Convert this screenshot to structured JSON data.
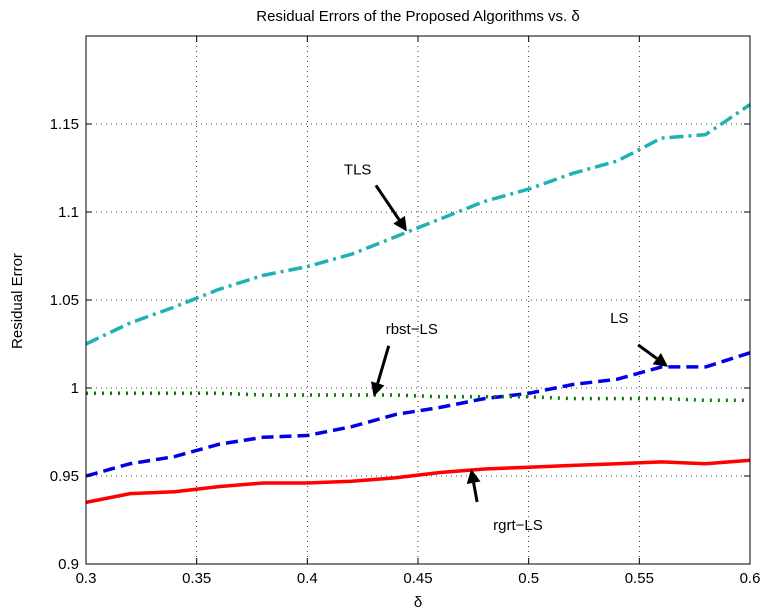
{
  "chart_data": {
    "type": "line",
    "title": "Residual Errors of the Proposed Algorithms vs. δ",
    "xlabel": "δ",
    "ylabel": "Residual Error",
    "xlim": [
      0.3,
      0.6
    ],
    "ylim": [
      0.9,
      1.2
    ],
    "xticks": [
      "0.3",
      "0.35",
      "0.4",
      "0.45",
      "0.5",
      "0.55",
      "0.6"
    ],
    "yticks": [
      "0.9",
      "0.95",
      "1",
      "1.05",
      "1.1",
      "1.15"
    ],
    "grid": true,
    "x": [
      0.3,
      0.32,
      0.34,
      0.36,
      0.38,
      0.4,
      0.42,
      0.44,
      0.46,
      0.48,
      0.5,
      0.52,
      0.54,
      0.56,
      0.58,
      0.6
    ],
    "series": [
      {
        "name": "TLS",
        "color": "#20b2b2",
        "style": "dashdot",
        "values": [
          1.025,
          1.037,
          1.046,
          1.056,
          1.064,
          1.069,
          1.076,
          1.086,
          1.096,
          1.106,
          1.113,
          1.122,
          1.129,
          1.142,
          1.144,
          1.161
        ]
      },
      {
        "name": "LS",
        "color": "#0000e6",
        "style": "dashed",
        "values": [
          0.95,
          0.957,
          0.961,
          0.968,
          0.972,
          0.973,
          0.978,
          0.985,
          0.989,
          0.994,
          0.997,
          1.002,
          1.005,
          1.012,
          1.012,
          1.02
        ]
      },
      {
        "name": "rbst−LS",
        "color": "#008000",
        "style": "dotted",
        "values": [
          0.997,
          0.997,
          0.997,
          0.997,
          0.996,
          0.996,
          0.996,
          0.996,
          0.995,
          0.995,
          0.995,
          0.994,
          0.994,
          0.994,
          0.993,
          0.993
        ]
      },
      {
        "name": "rgrt−LS",
        "color": "#ff0000",
        "style": "solid",
        "values": [
          0.935,
          0.94,
          0.941,
          0.944,
          0.946,
          0.946,
          0.947,
          0.949,
          0.952,
          0.954,
          0.955,
          0.956,
          0.957,
          0.958,
          0.957,
          0.959
        ]
      }
    ],
    "annotations": [
      {
        "text": "TLS",
        "target_x": 0.445,
        "target_y": 1.089
      },
      {
        "text": "LS",
        "target_x": 0.563,
        "target_y": 1.012
      },
      {
        "text": "rbst−LS",
        "target_x": 0.43,
        "target_y": 0.995
      },
      {
        "text": "rgrt−LS",
        "target_x": 0.474,
        "target_y": 0.954
      }
    ]
  }
}
